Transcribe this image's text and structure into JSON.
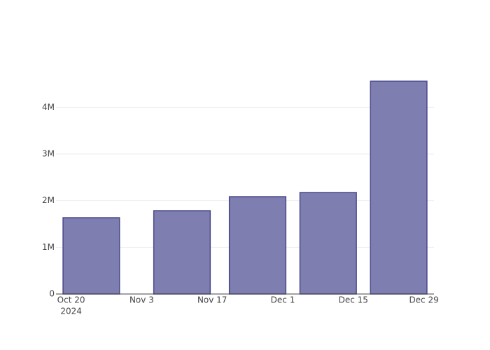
{
  "chart_data": {
    "type": "bar",
    "x": [
      "2024-10-24",
      "2024-11-11",
      "2024-11-26",
      "2024-12-10",
      "2024-12-24"
    ],
    "values": [
      1635000,
      1785000,
      2085000,
      2175000,
      4560000
    ],
    "color": "#7f7eb0",
    "edge_color": "#4a4a8c",
    "bar_width_days": 11.2,
    "xlim": [
      "2024-10-17",
      "2024-12-31"
    ],
    "xticks": [
      {
        "value": "2024-10-20",
        "label": "Oct 20"
      },
      {
        "value": "2024-11-03",
        "label": "Nov 3"
      },
      {
        "value": "2024-11-17",
        "label": "Nov 17"
      },
      {
        "value": "2024-12-01",
        "label": "Dec 1"
      },
      {
        "value": "2024-12-15",
        "label": "Dec 15"
      },
      {
        "value": "2024-12-29",
        "label": "Dec 29"
      }
    ],
    "x_year_label": "2024",
    "ylim": [
      0,
      4800000
    ],
    "yticks": [
      0,
      {
        "value": 1000000,
        "label": "1M"
      },
      {
        "value": 2000000,
        "label": "2M"
      },
      {
        "value": 3000000,
        "label": "3M"
      },
      {
        "value": 4000000,
        "label": "4M"
      }
    ],
    "grid": true
  }
}
